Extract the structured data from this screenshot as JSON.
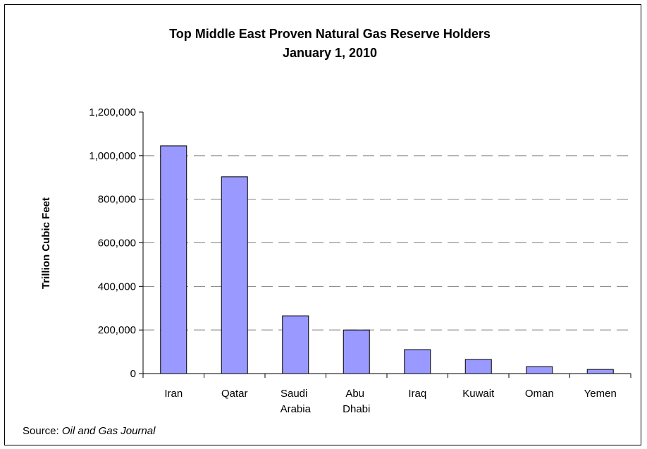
{
  "chart_data": {
    "type": "bar",
    "title": "Top Middle East Proven Natural Gas Reserve Holders",
    "subtitle": "January 1, 2010",
    "y_label": "Trillion Cubic Feet",
    "categories": [
      "Iran",
      "Qatar",
      "Saudi Arabia",
      "Abu Dhabi",
      "Iraq",
      "Kuwait",
      "Oman",
      "Yemen"
    ],
    "values": [
      1045000,
      903000,
      265000,
      200000,
      110000,
      65000,
      32000,
      19000
    ],
    "color": "#9999ff",
    "ylim": [
      0,
      1200000
    ],
    "yticks": [
      0,
      {
        "value": 200000,
        "label": "200,000"
      },
      {
        "value": 400000,
        "label": "400,000"
      },
      {
        "value": 600000,
        "label": "600,000"
      },
      {
        "value": 800000,
        "label": "800,000"
      },
      {
        "value": 1000000,
        "label": "1,000,000"
      },
      {
        "value": 1200000,
        "label": "1,200,000"
      }
    ],
    "grid": true,
    "source_label": "Source:",
    "source": "Oil and Gas Journal"
  }
}
